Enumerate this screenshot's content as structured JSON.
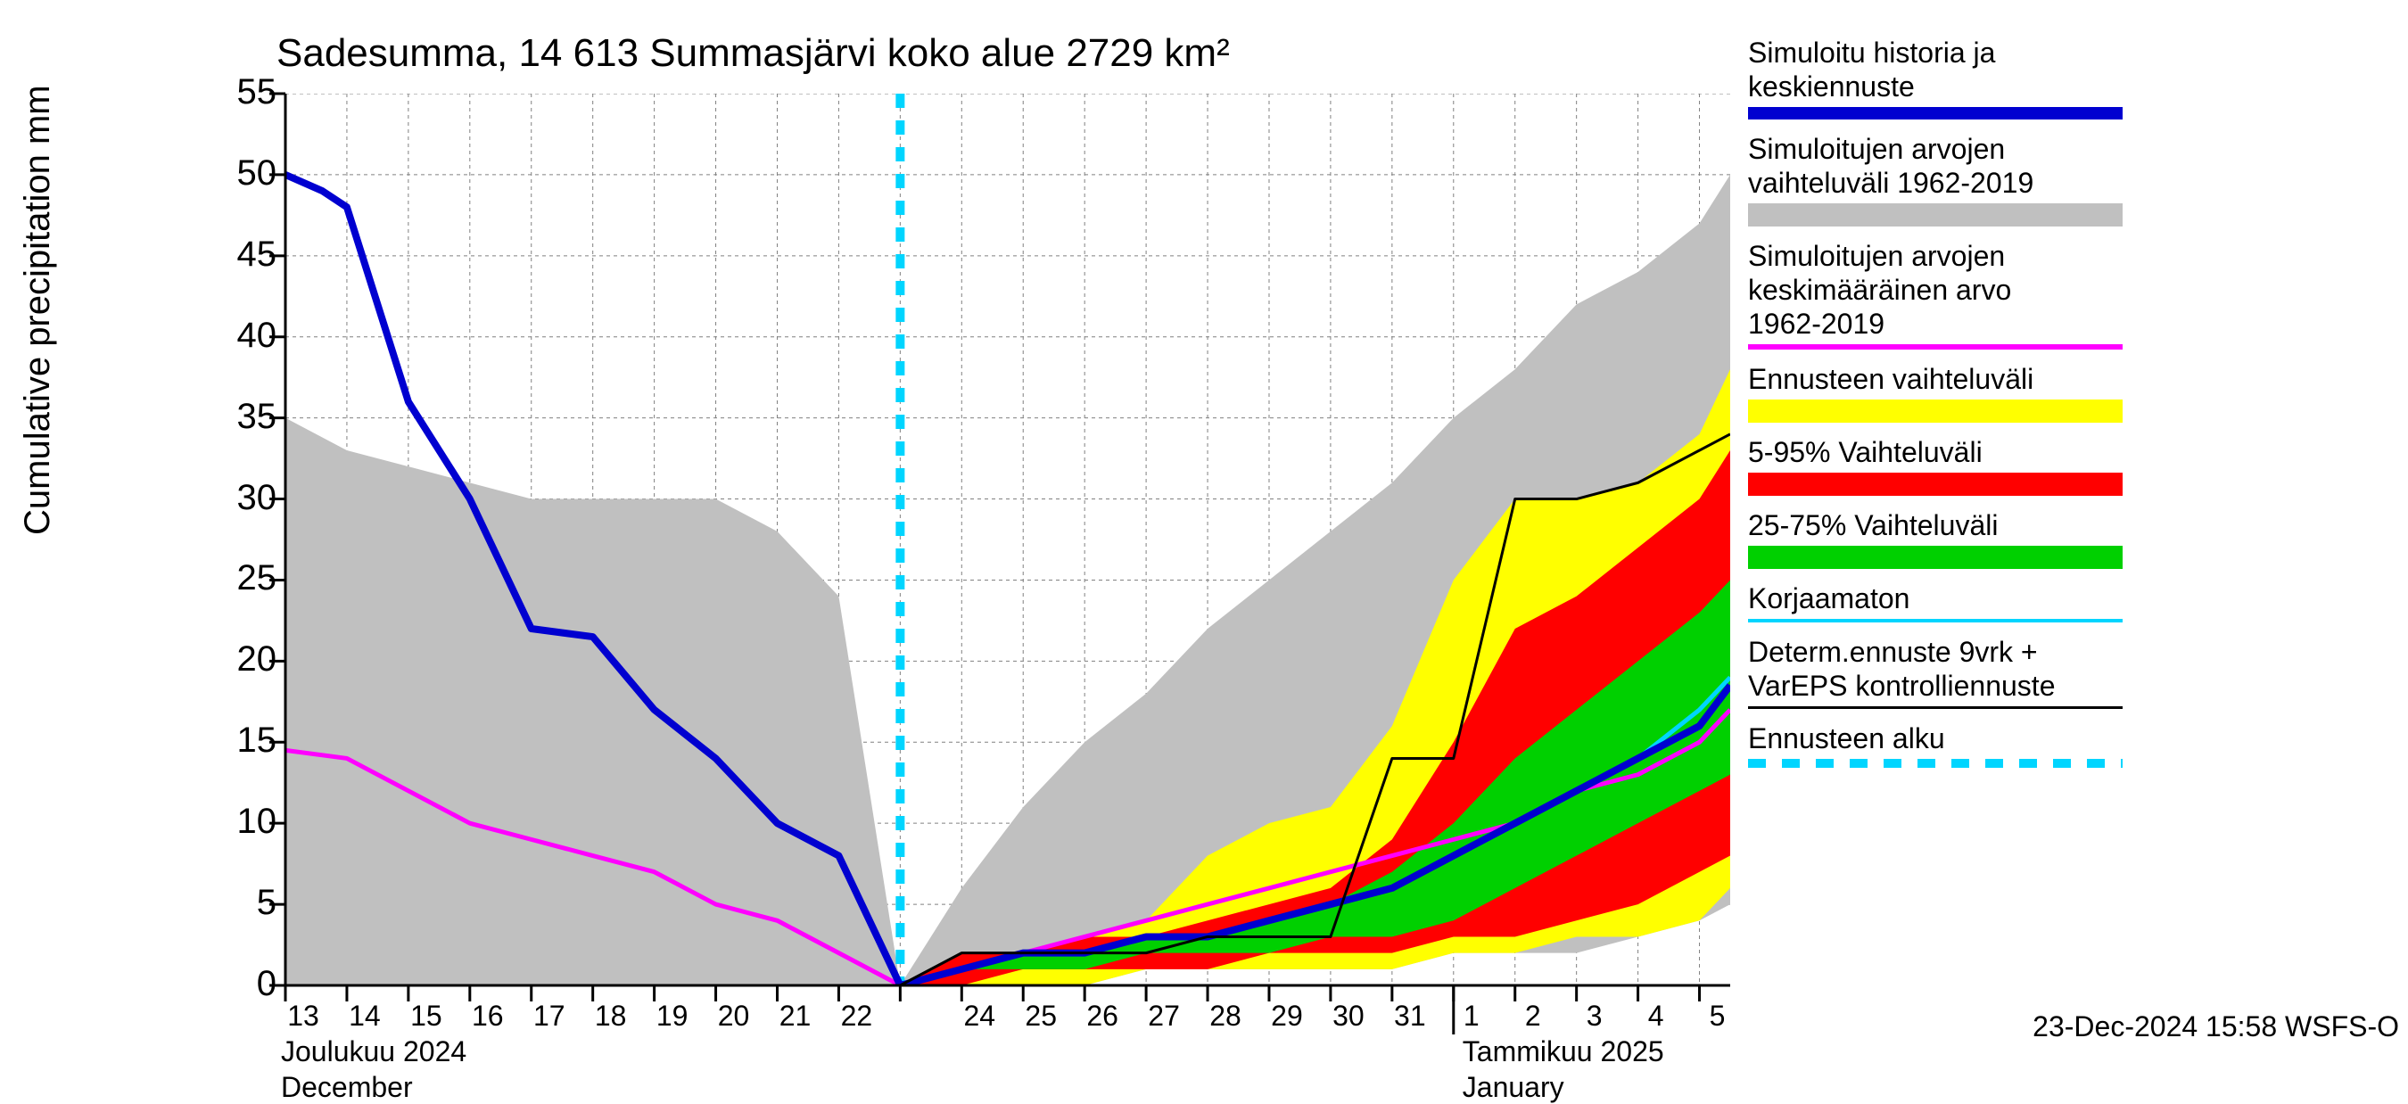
{
  "title": "Sadesumma, 14 613 Summasjärvi koko alue 2729 km²",
  "ylabel": "Cumulative precipitation   mm",
  "footer_text": "23-Dec-2024 15:58 WSFS-O",
  "plot": {
    "outer_w": 2700,
    "outer_h": 1200,
    "inner_x": 320,
    "inner_y": 105,
    "inner_w": 1620,
    "inner_h": 1000,
    "xlim": [
      0,
      23.5
    ],
    "ylim": [
      0,
      55
    ],
    "ytick_step": 5,
    "bg_color": "#ffffff",
    "grid_color": "#808080",
    "axis_color": "#000000",
    "grid_dash": "4,4",
    "tick_fontsize": 40,
    "title_fontsize": 44
  },
  "x_ticks": {
    "indices": [
      0,
      1,
      2,
      3,
      4,
      5,
      6,
      7,
      8,
      9,
      10,
      11,
      12,
      13,
      14,
      15,
      16,
      17,
      18,
      19,
      20,
      21,
      22,
      23
    ],
    "labels": [
      "13",
      "14",
      "15",
      "16",
      "17",
      "18",
      "19",
      "20",
      "21",
      "22",
      "",
      "24",
      "25",
      "26",
      "27",
      "28",
      "29",
      "30",
      "31",
      "1",
      "2",
      "3",
      "4",
      "5"
    ],
    "month_sep_at": 19
  },
  "x_sub": {
    "left_line1": "Joulukuu  2024",
    "left_line2": "December",
    "right_line1": "Tammikuu  2025",
    "right_line2": "January"
  },
  "forecast_start": {
    "x": 10,
    "color": "#00d5ff",
    "dash": "16,14",
    "width": 10
  },
  "bands": {
    "grey": {
      "color": "#c0c0c0",
      "x": [
        0,
        1,
        2,
        3,
        4,
        5,
        6,
        7,
        8,
        9,
        10,
        11,
        12,
        13,
        14,
        15,
        16,
        17,
        18,
        19,
        20,
        21,
        22,
        23,
        23.5
      ],
      "upper": [
        35,
        33,
        32,
        31,
        30,
        30,
        30,
        30,
        28,
        24,
        0,
        6,
        11,
        15,
        18,
        22,
        25,
        28,
        31,
        35,
        38,
        42,
        44,
        47,
        50
      ],
      "lower": [
        0,
        0,
        0,
        0,
        0,
        0,
        0,
        0,
        0,
        0,
        0,
        0,
        0,
        0,
        1,
        1,
        1,
        1,
        1,
        2,
        2,
        2,
        3,
        4,
        5
      ]
    },
    "yellow": {
      "color": "#ffff00",
      "x": [
        10,
        11,
        12,
        13,
        14,
        15,
        16,
        17,
        18,
        19,
        20,
        21,
        22,
        23,
        23.5
      ],
      "upper": [
        0,
        2,
        2,
        3,
        4,
        8,
        10,
        11,
        16,
        25,
        30,
        30,
        31,
        34,
        38
      ],
      "lower": [
        0,
        0,
        0,
        0,
        1,
        1,
        1,
        1,
        1,
        2,
        2,
        3,
        3,
        4,
        6
      ]
    },
    "red": {
      "color": "#ff0000",
      "x": [
        10,
        11,
        12,
        13,
        14,
        15,
        16,
        17,
        18,
        19,
        20,
        21,
        22,
        23,
        23.5
      ],
      "upper": [
        0,
        2,
        2,
        3,
        3,
        4,
        5,
        6,
        9,
        15,
        22,
        24,
        27,
        30,
        33
      ],
      "lower": [
        0,
        0,
        1,
        1,
        1,
        1,
        2,
        2,
        2,
        3,
        3,
        4,
        5,
        7,
        8
      ]
    },
    "green": {
      "color": "#00d000",
      "x": [
        10,
        11,
        12,
        13,
        14,
        15,
        16,
        17,
        18,
        19,
        20,
        21,
        22,
        23,
        23.5
      ],
      "upper": [
        0,
        1,
        2,
        2,
        3,
        3,
        4,
        5,
        7,
        10,
        14,
        17,
        20,
        23,
        25
      ],
      "lower": [
        0,
        1,
        1,
        1,
        2,
        2,
        2,
        3,
        3,
        4,
        6,
        8,
        10,
        12,
        13
      ]
    }
  },
  "lines": {
    "magenta": {
      "color": "#ff00ff",
      "width": 5,
      "x": [
        0,
        1,
        2,
        3,
        4,
        5,
        6,
        7,
        8,
        9,
        10,
        11,
        12,
        13,
        14,
        15,
        16,
        17,
        18,
        19,
        20,
        21,
        22,
        23,
        23.5
      ],
      "y": [
        14.5,
        14,
        12,
        10,
        9,
        8,
        7,
        5,
        4,
        2,
        0,
        1,
        2,
        3,
        4,
        5,
        6,
        7,
        8,
        9,
        10,
        12,
        13,
        15,
        17
      ]
    },
    "black": {
      "color": "#000000",
      "width": 3,
      "x": [
        10,
        11,
        12,
        13,
        14,
        15,
        16,
        17,
        18,
        19,
        20,
        21,
        22,
        23,
        23.5
      ],
      "y": [
        0,
        2,
        2,
        2,
        2,
        3,
        3,
        3,
        14,
        14,
        30,
        30,
        31,
        33,
        34
      ]
    },
    "cyan": {
      "color": "#00d5ff",
      "width": 5,
      "x": [
        0,
        0.6,
        1,
        2,
        3,
        4,
        5,
        6,
        7,
        8,
        9,
        10,
        11,
        12,
        13,
        14,
        15,
        16,
        17,
        18,
        19,
        20,
        21,
        22,
        23,
        23.5
      ],
      "y": [
        50,
        49,
        48,
        36,
        30,
        22,
        21.5,
        17,
        14,
        10,
        8,
        0,
        1,
        2,
        2,
        3,
        3,
        4,
        5,
        6,
        8,
        10,
        12,
        14,
        17,
        19
      ]
    },
    "blue": {
      "color": "#0000d0",
      "width": 8,
      "x": [
        0,
        0.6,
        1,
        2,
        3,
        4,
        5,
        6,
        7,
        8,
        9,
        10,
        11,
        12,
        13,
        14,
        15,
        16,
        17,
        18,
        19,
        20,
        21,
        22,
        23,
        23.5
      ],
      "y": [
        50,
        49,
        48,
        36,
        30,
        22,
        21.5,
        17,
        14,
        10,
        8,
        0,
        1,
        2,
        2,
        3,
        3,
        4,
        5,
        6,
        8,
        10,
        12,
        14,
        16,
        18.5
      ]
    }
  },
  "legend": [
    {
      "text_lines": [
        "Simuloitu historia ja",
        "keskiennuste"
      ],
      "type": "line",
      "color": "#0000d0",
      "width": 14
    },
    {
      "text_lines": [
        "Simuloitujen arvojen",
        "vaihteluväli 1962-2019"
      ],
      "type": "fill",
      "color": "#c0c0c0",
      "height": 26
    },
    {
      "text_lines": [
        "Simuloitujen arvojen",
        "keskimääräinen arvo",
        " 1962-2019"
      ],
      "type": "line",
      "color": "#ff00ff",
      "width": 6
    },
    {
      "text_lines": [
        "Ennusteen vaihteluväli"
      ],
      "type": "fill",
      "color": "#ffff00",
      "height": 26
    },
    {
      "text_lines": [
        "5-95% Vaihteluväli"
      ],
      "type": "fill",
      "color": "#ff0000",
      "height": 26
    },
    {
      "text_lines": [
        "25-75% Vaihteluväli"
      ],
      "type": "fill",
      "color": "#00d000",
      "height": 26
    },
    {
      "text_lines": [
        "Korjaamaton"
      ],
      "type": "line",
      "color": "#00d5ff",
      "width": 4
    },
    {
      "text_lines": [
        "Determ.ennuste 9vrk +",
        "VarEPS kontrolliennuste"
      ],
      "type": "line",
      "color": "#000000",
      "width": 3
    },
    {
      "text_lines": [
        "Ennusteen alku"
      ],
      "type": "dashed",
      "color": "#00d5ff",
      "width": 10
    }
  ]
}
